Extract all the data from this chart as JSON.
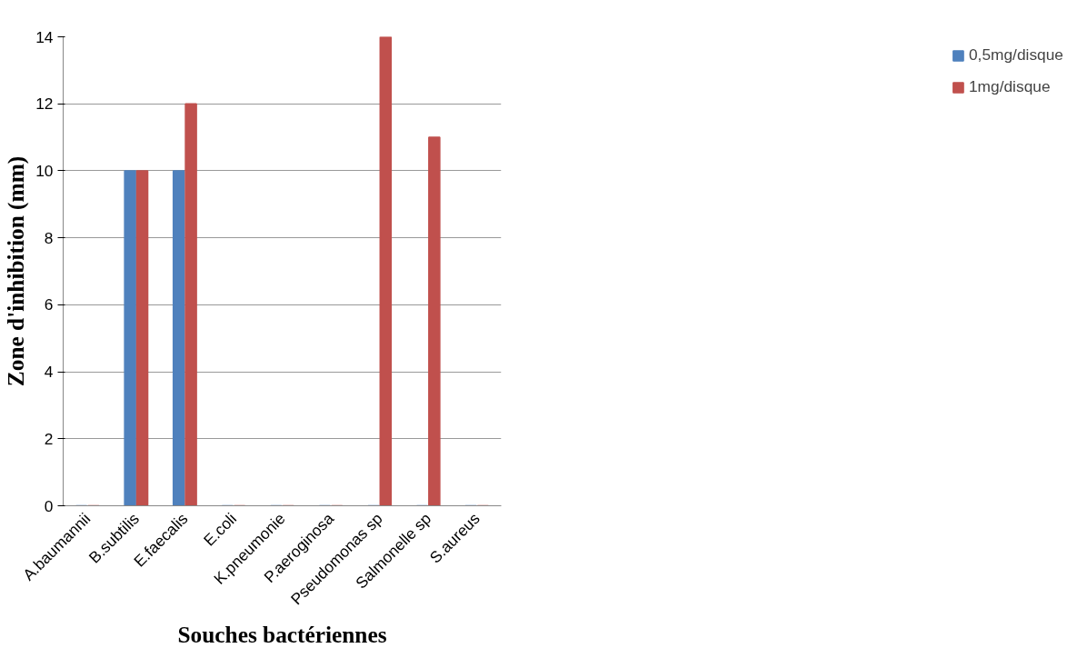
{
  "chart_data": {
    "type": "bar",
    "xlabel": "Souches bactériennes",
    "ylabel": "Zone d'inhibition (mm)",
    "categories": [
      "A.baumannii",
      "B.subtilis",
      "E.faecalis",
      "E.coli",
      "K.pneumonie",
      "P.aeroginosa",
      "Pseudomonas sp",
      "Salmonelle sp",
      "S.aureus"
    ],
    "series": [
      {
        "name": "0,5mg/disque",
        "color": "#4f81bd",
        "values": [
          0,
          10,
          10,
          0,
          0,
          0,
          0,
          0,
          0
        ]
      },
      {
        "name": "1mg/disque",
        "color": "#c0504d",
        "values": [
          0,
          10,
          12,
          0,
          0,
          0,
          14,
          11,
          0
        ]
      }
    ],
    "ylim": [
      0,
      14
    ],
    "yticks": [
      0,
      2,
      4,
      6,
      8,
      10,
      12,
      14
    ],
    "grid": "y",
    "legend": "right"
  }
}
